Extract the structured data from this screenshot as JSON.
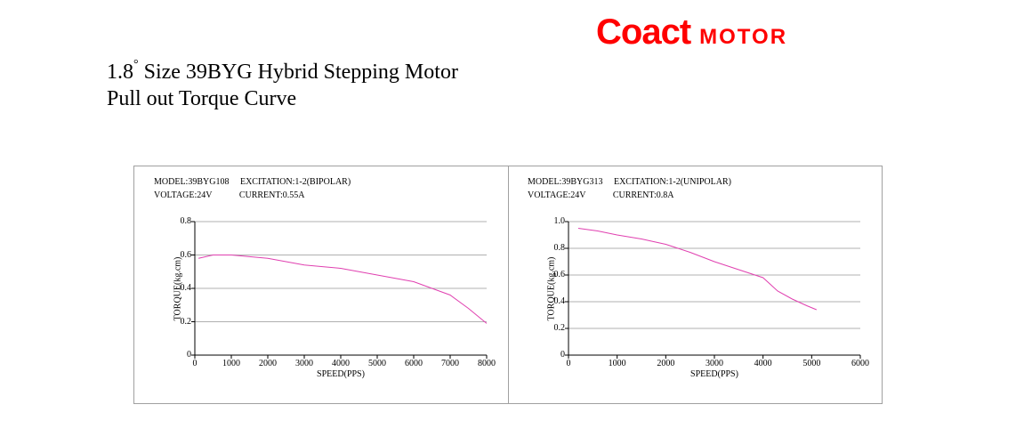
{
  "brand": {
    "main": "Coact",
    "sub": "MOTOR",
    "color": "#ff0000"
  },
  "title_line1_prefix": "1.8",
  "title_line1_rest": " Size 39BYG Hybrid Stepping Motor",
  "title_line2": "Pull out Torque Curve",
  "title_fontsize": 24,
  "panel_border_color": "#a0a0a0",
  "axis_color": "#000000",
  "grid_color": "#b0b0b0",
  "background_color": "#ffffff",
  "series_color": "#e040b0",
  "label_fontsize": 10,
  "charts": [
    {
      "id": "chart-left",
      "meta": {
        "model_label": "MODEL:",
        "model": "39BYG108",
        "excitation_label": "EXCITATION:",
        "excitation": "1-2(BIPOLAR)",
        "voltage_label": "VOLTAGE:",
        "voltage": "24V",
        "current_label": "CURRENT:",
        "current": "0.55A"
      },
      "xlabel": "SPEED(PPS)",
      "ylabel": "TORQUE(kg.cm)",
      "xlim": [
        0,
        8000
      ],
      "ylim": [
        0,
        0.8
      ],
      "xticks": [
        0,
        1000,
        2000,
        3000,
        4000,
        5000,
        6000,
        7000,
        8000
      ],
      "yticks": [
        0,
        0.2,
        0.4,
        0.6,
        0.8
      ],
      "line_width": 1,
      "data": [
        [
          100,
          0.58
        ],
        [
          500,
          0.6
        ],
        [
          1000,
          0.6
        ],
        [
          1500,
          0.59
        ],
        [
          2000,
          0.58
        ],
        [
          2500,
          0.56
        ],
        [
          3000,
          0.54
        ],
        [
          3500,
          0.53
        ],
        [
          4000,
          0.52
        ],
        [
          4500,
          0.5
        ],
        [
          5000,
          0.48
        ],
        [
          5500,
          0.46
        ],
        [
          6000,
          0.44
        ],
        [
          6500,
          0.4
        ],
        [
          7000,
          0.36
        ],
        [
          7500,
          0.28
        ],
        [
          8000,
          0.19
        ]
      ]
    },
    {
      "id": "chart-right",
      "meta": {
        "model_label": "MODEL:",
        "model": "39BYG313",
        "excitation_label": "EXCITATION:",
        "excitation": "1-2(UNIPOLAR)",
        "voltage_label": "VOLTAGE:",
        "voltage": "24V",
        "current_label": "CURRENT:",
        "current": "0.8A"
      },
      "xlabel": "SPEED(PPS)",
      "ylabel": "TORQUE(kg.cm)",
      "xlim": [
        0,
        6000
      ],
      "ylim": [
        0,
        1.0
      ],
      "xticks": [
        0,
        1000,
        2000,
        3000,
        4000,
        5000,
        6000
      ],
      "yticks": [
        0,
        0.2,
        0.4,
        0.6,
        0.8,
        1.0
      ],
      "line_width": 1,
      "data": [
        [
          200,
          0.95
        ],
        [
          600,
          0.93
        ],
        [
          1000,
          0.9
        ],
        [
          1500,
          0.87
        ],
        [
          2000,
          0.83
        ],
        [
          2500,
          0.77
        ],
        [
          3000,
          0.7
        ],
        [
          3500,
          0.64
        ],
        [
          4000,
          0.58
        ],
        [
          4300,
          0.48
        ],
        [
          4600,
          0.42
        ],
        [
          4900,
          0.37
        ],
        [
          5100,
          0.34
        ]
      ]
    }
  ]
}
